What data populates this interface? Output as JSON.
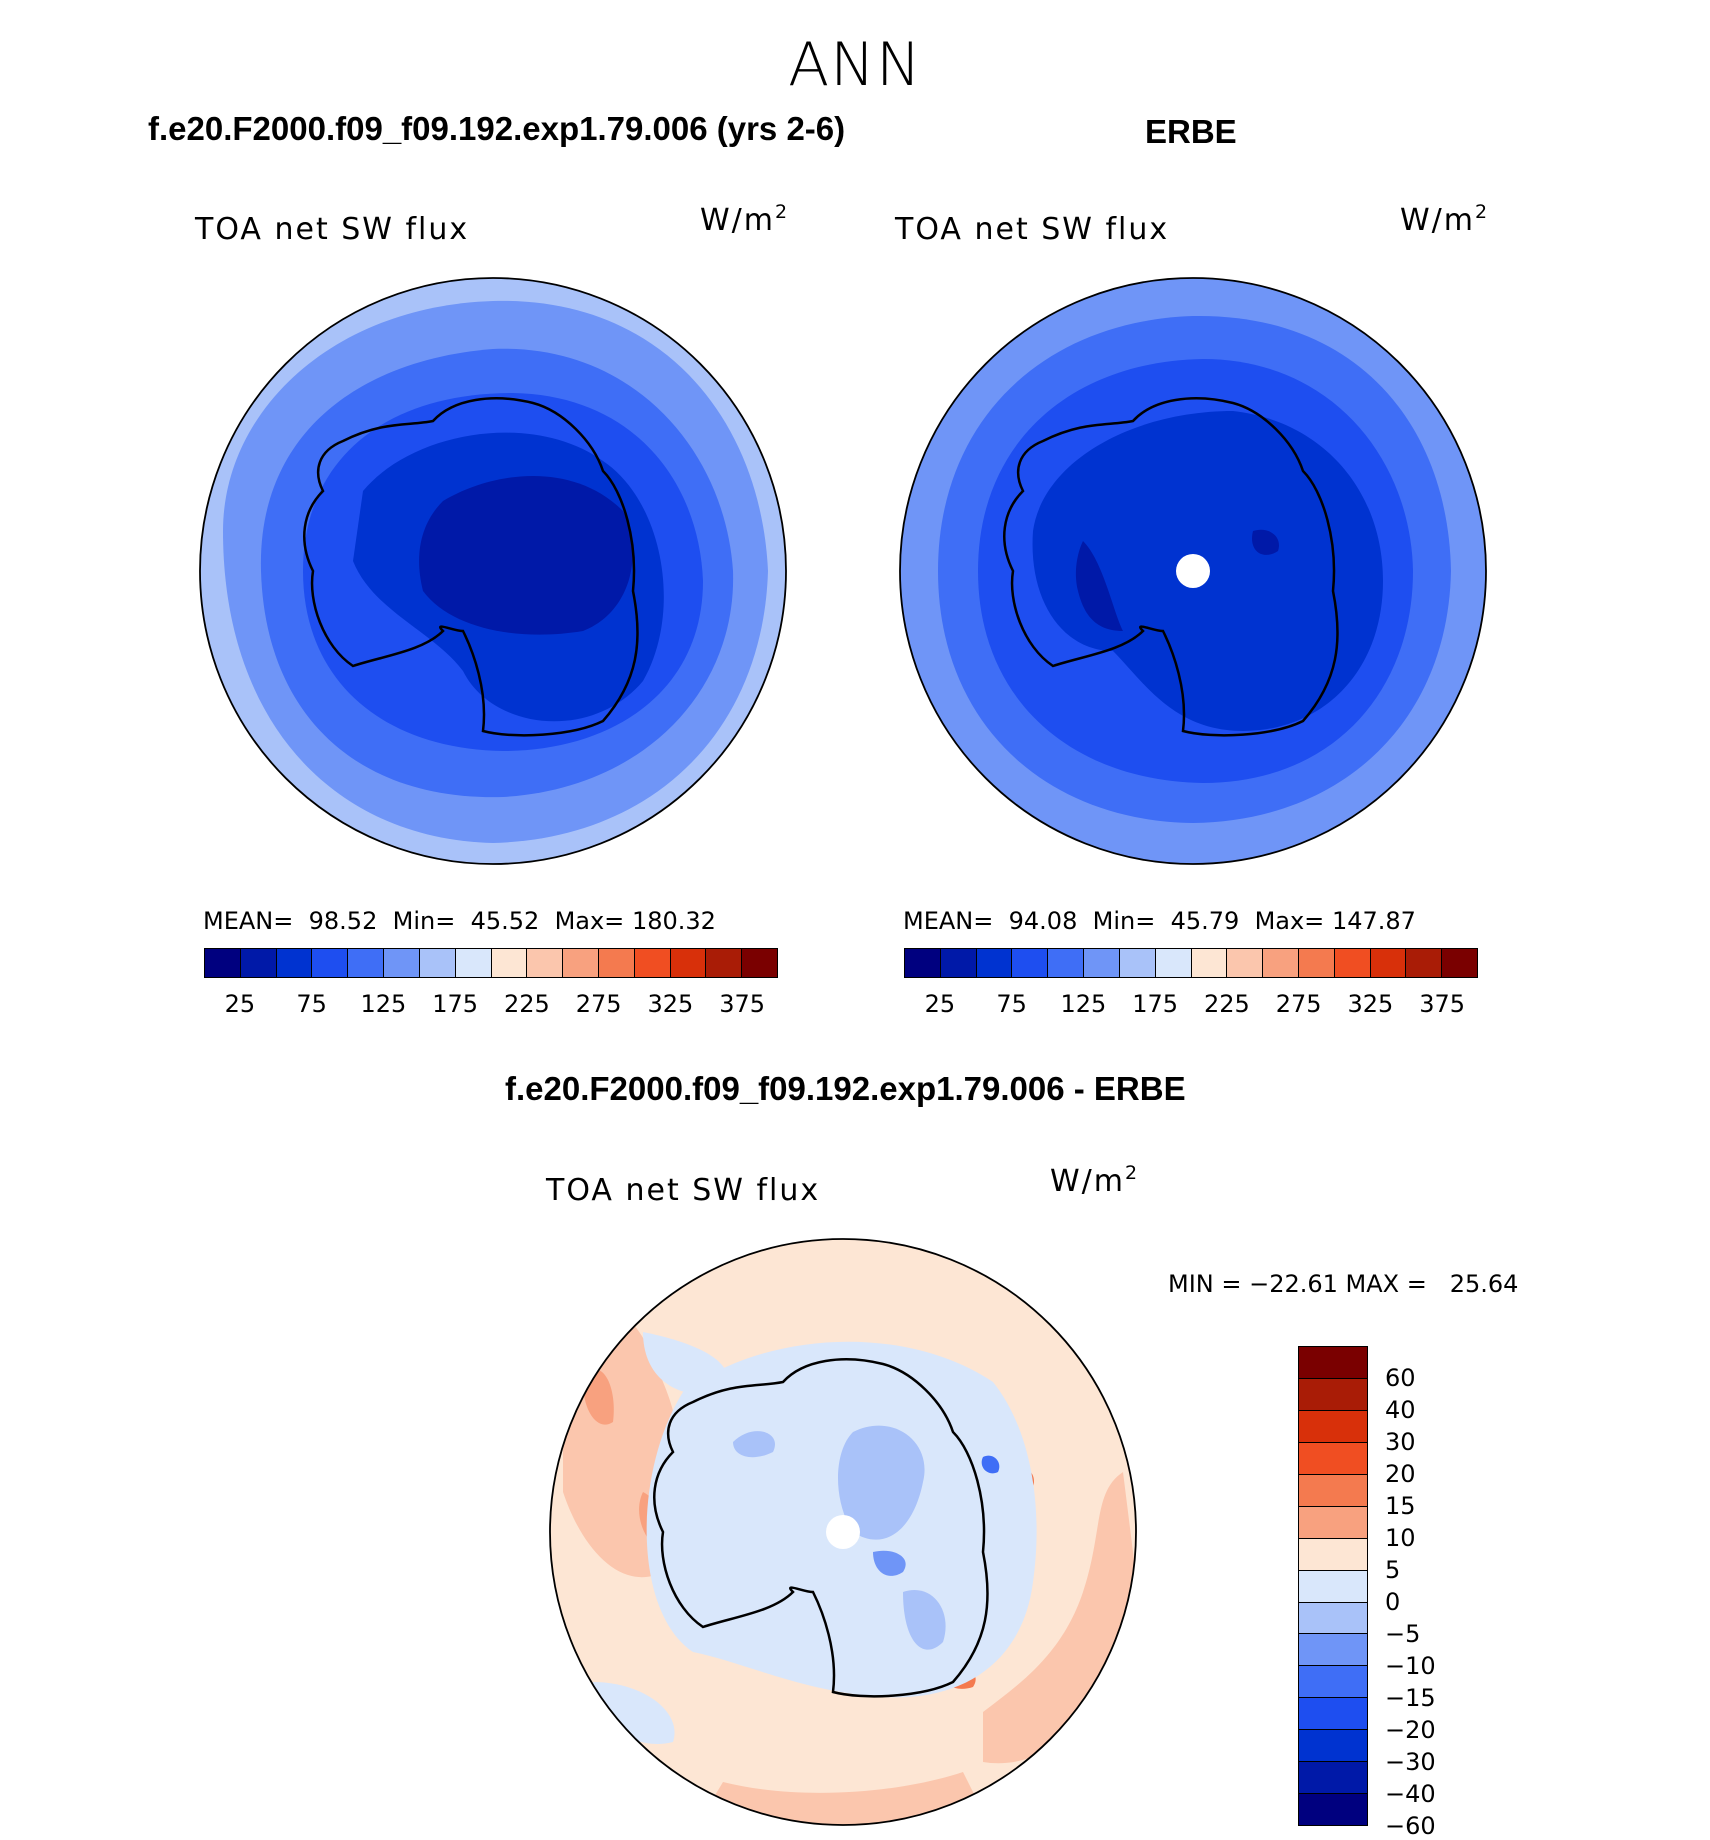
{
  "season": "ANN",
  "panels": [
    {
      "title": "f.e20.F2000.f09_f09.192.exp1.79.006 (yrs 2-6)",
      "variable": "TOA net SW flux",
      "units_base": "W/m",
      "units_exp": "2",
      "stats": {
        "mean_label": "MEAN=",
        "mean": "98.52",
        "min_label": "Min=",
        "min": "45.52",
        "max_label": "Max=",
        "max": "180.32"
      }
    },
    {
      "title": "ERBE",
      "variable": "TOA net SW flux",
      "units_base": "W/m",
      "units_exp": "2",
      "stats": {
        "mean_label": "MEAN=",
        "mean": "94.08",
        "min_label": "Min=",
        "min": "45.79",
        "max_label": "Max=",
        "max": "147.87"
      }
    }
  ],
  "diff_panel": {
    "title": "f.e20.F2000.f09_f09.192.exp1.79.006 - ERBE",
    "variable": "TOA net SW flux",
    "units_base": "W/m",
    "units_exp": "2",
    "minmax": "MIN = −22.61 MAX =   25.64"
  },
  "abs_colorbar": {
    "colors": [
      "#00007f",
      "#0019a8",
      "#0033d0",
      "#1e4ef0",
      "#3f6ef6",
      "#6f95f7",
      "#a9c2f9",
      "#d9e7fb",
      "#fde6d4",
      "#fbc6ad",
      "#f8a17f",
      "#f47a4f",
      "#f04e22",
      "#d8300a",
      "#a91c06",
      "#7a0000"
    ],
    "tick_labels": [
      "25",
      "75",
      "125",
      "175",
      "225",
      "275",
      "325",
      "375"
    ]
  },
  "diff_colorbar": {
    "colors": [
      "#7a0000",
      "#a91c06",
      "#d8300a",
      "#f04e22",
      "#f47a4f",
      "#f8a17f",
      "#fde6d4",
      "#d9e7fb",
      "#a9c2f9",
      "#6f95f7",
      "#3f6ef6",
      "#1e4ef0",
      "#0033d0",
      "#0019a8",
      "#00007f"
    ],
    "tick_labels": [
      "60",
      "40",
      "30",
      "20",
      "15",
      "10",
      "5",
      "0",
      "−5",
      "−10",
      "−15",
      "−20",
      "−30",
      "−40",
      "−60"
    ]
  }
}
